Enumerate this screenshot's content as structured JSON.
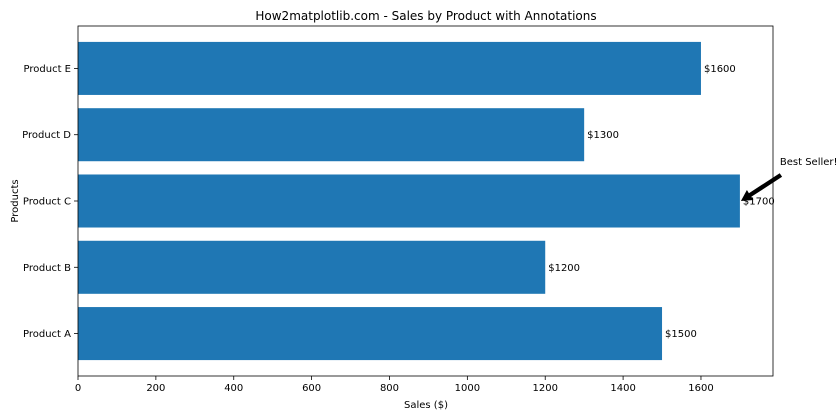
{
  "chart_data": {
    "type": "bar",
    "orientation": "horizontal",
    "title": "How2matplotlib.com - Sales by Product with Annotations",
    "xlabel": "Sales ($)",
    "ylabel": "Products",
    "categories": [
      "Product A",
      "Product B",
      "Product C",
      "Product D",
      "Product E"
    ],
    "values": [
      1500,
      1200,
      1700,
      1300,
      1600
    ],
    "bar_labels": [
      "$1500",
      "$1200",
      "$1700",
      "$1300",
      "$1600"
    ],
    "xlim": [
      0,
      1785
    ],
    "xticks": [
      0,
      200,
      400,
      600,
      800,
      1000,
      1200,
      1400,
      1600
    ],
    "xtick_labels": [
      "0",
      "200",
      "400",
      "600",
      "800",
      "1000",
      "1200",
      "1400",
      "1600"
    ],
    "bar_color": "#1f77b4",
    "grid": false,
    "annotation": {
      "text": "Best Seller!",
      "target_category": "Product C",
      "target_value": 1700,
      "arrow_color": "#000000"
    }
  }
}
